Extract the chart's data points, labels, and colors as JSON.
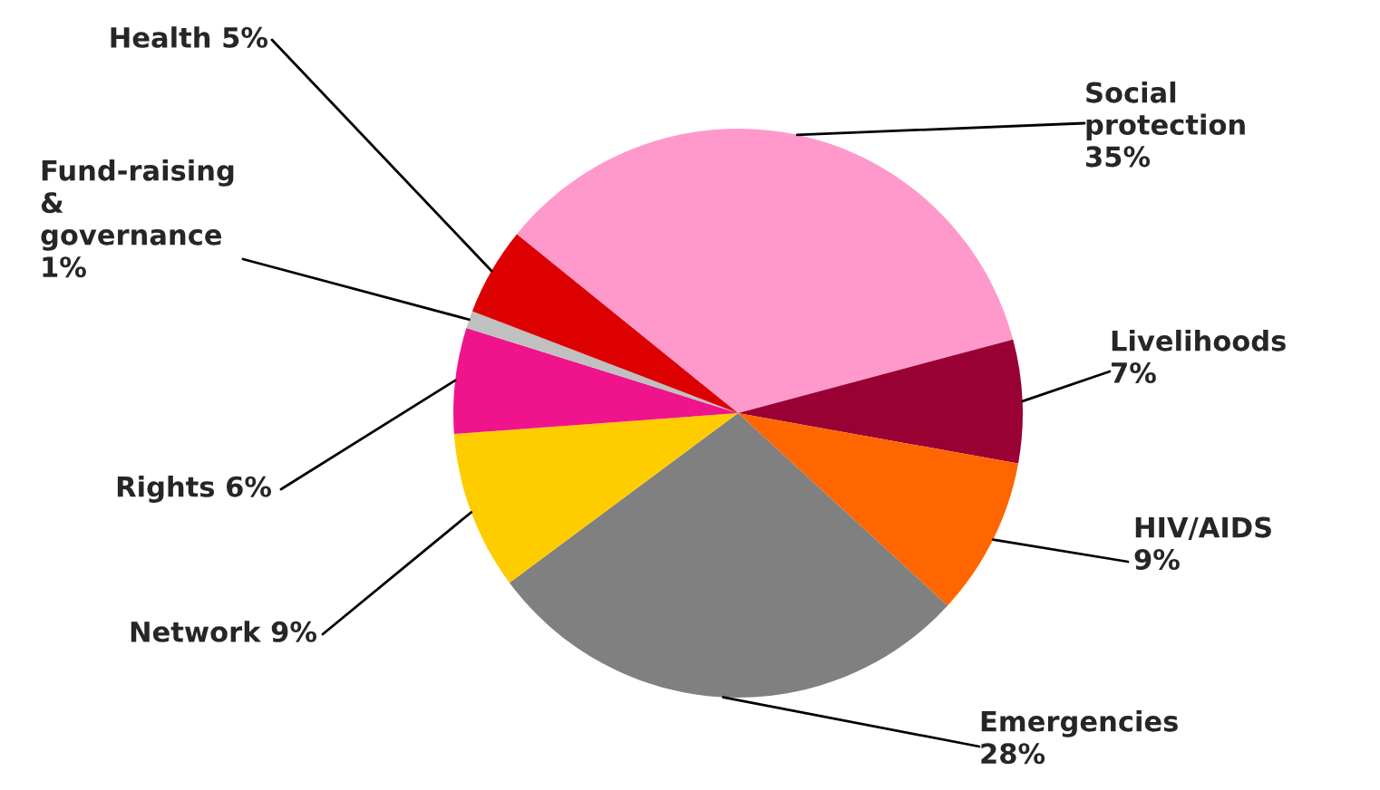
{
  "chart_data": {
    "type": "pie",
    "categories": [
      "Social protection",
      "Livelihoods",
      "HIV/AIDS",
      "Emergencies",
      "Network",
      "Rights",
      "Fund-raising & governance",
      "Health"
    ],
    "values": [
      35,
      7,
      9,
      28,
      9,
      6,
      1,
      5
    ],
    "colors": [
      "#ff99cc",
      "#990033",
      "#ff6600",
      "#808080",
      "#ffcc00",
      "#f0148c",
      "#c0c0c0",
      "#dd0000"
    ],
    "value_labels": [
      "35%",
      "7%",
      "9%",
      "28%",
      "9%",
      "6%",
      "1%",
      "5%"
    ],
    "legend": false
  }
}
